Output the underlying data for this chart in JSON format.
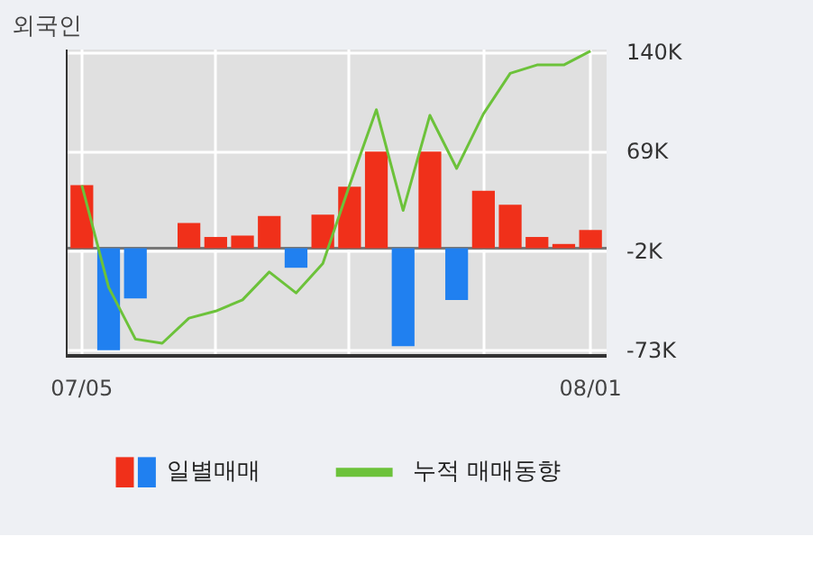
{
  "chart_data": {
    "type": "bar",
    "title": "외국인",
    "categories": [
      "07/05",
      null,
      null,
      null,
      null,
      null,
      null,
      null,
      null,
      null,
      null,
      null,
      null,
      null,
      null,
      null,
      null,
      null,
      null,
      "08/01"
    ],
    "series": [
      {
        "name": "일별매매",
        "colors": [
          "#f0301a",
          "#2080f0",
          "#2080f0",
          "#f0301a",
          "#f0301a",
          "#f0301a",
          "#f0301a",
          "#f0301a",
          "#2080f0",
          "#f0301a",
          "#f0301a",
          "#f0301a",
          "#2080f0",
          "#f0301a",
          "#2080f0",
          "#f0301a",
          "#f0301a",
          "#f0301a",
          "#f0301a",
          "#f0301a"
        ],
        "values": [
          45,
          -73,
          -36,
          0,
          18,
          8,
          9,
          23,
          -14,
          24,
          44,
          69,
          -70,
          69,
          -37,
          41,
          31,
          8,
          3,
          13
        ]
      },
      {
        "name": "누적 매매동향",
        "type": "line",
        "color": "#6cc23a",
        "values": [
          45,
          -28,
          -65,
          -68,
          -50,
          -45,
          -37,
          -17,
          -32,
          -11,
          45,
          99,
          27,
          95,
          57,
          96,
          125,
          131,
          131,
          141
        ]
      }
    ],
    "ylim": [
      -77,
      142
    ],
    "yticks": [
      {
        "value": 140,
        "label": "140K"
      },
      {
        "value": 69,
        "label": "69K"
      },
      {
        "value": -2,
        "label": "-2K"
      },
      {
        "value": -73,
        "label": "-73K"
      }
    ],
    "grid": true,
    "legend": "bottom"
  }
}
